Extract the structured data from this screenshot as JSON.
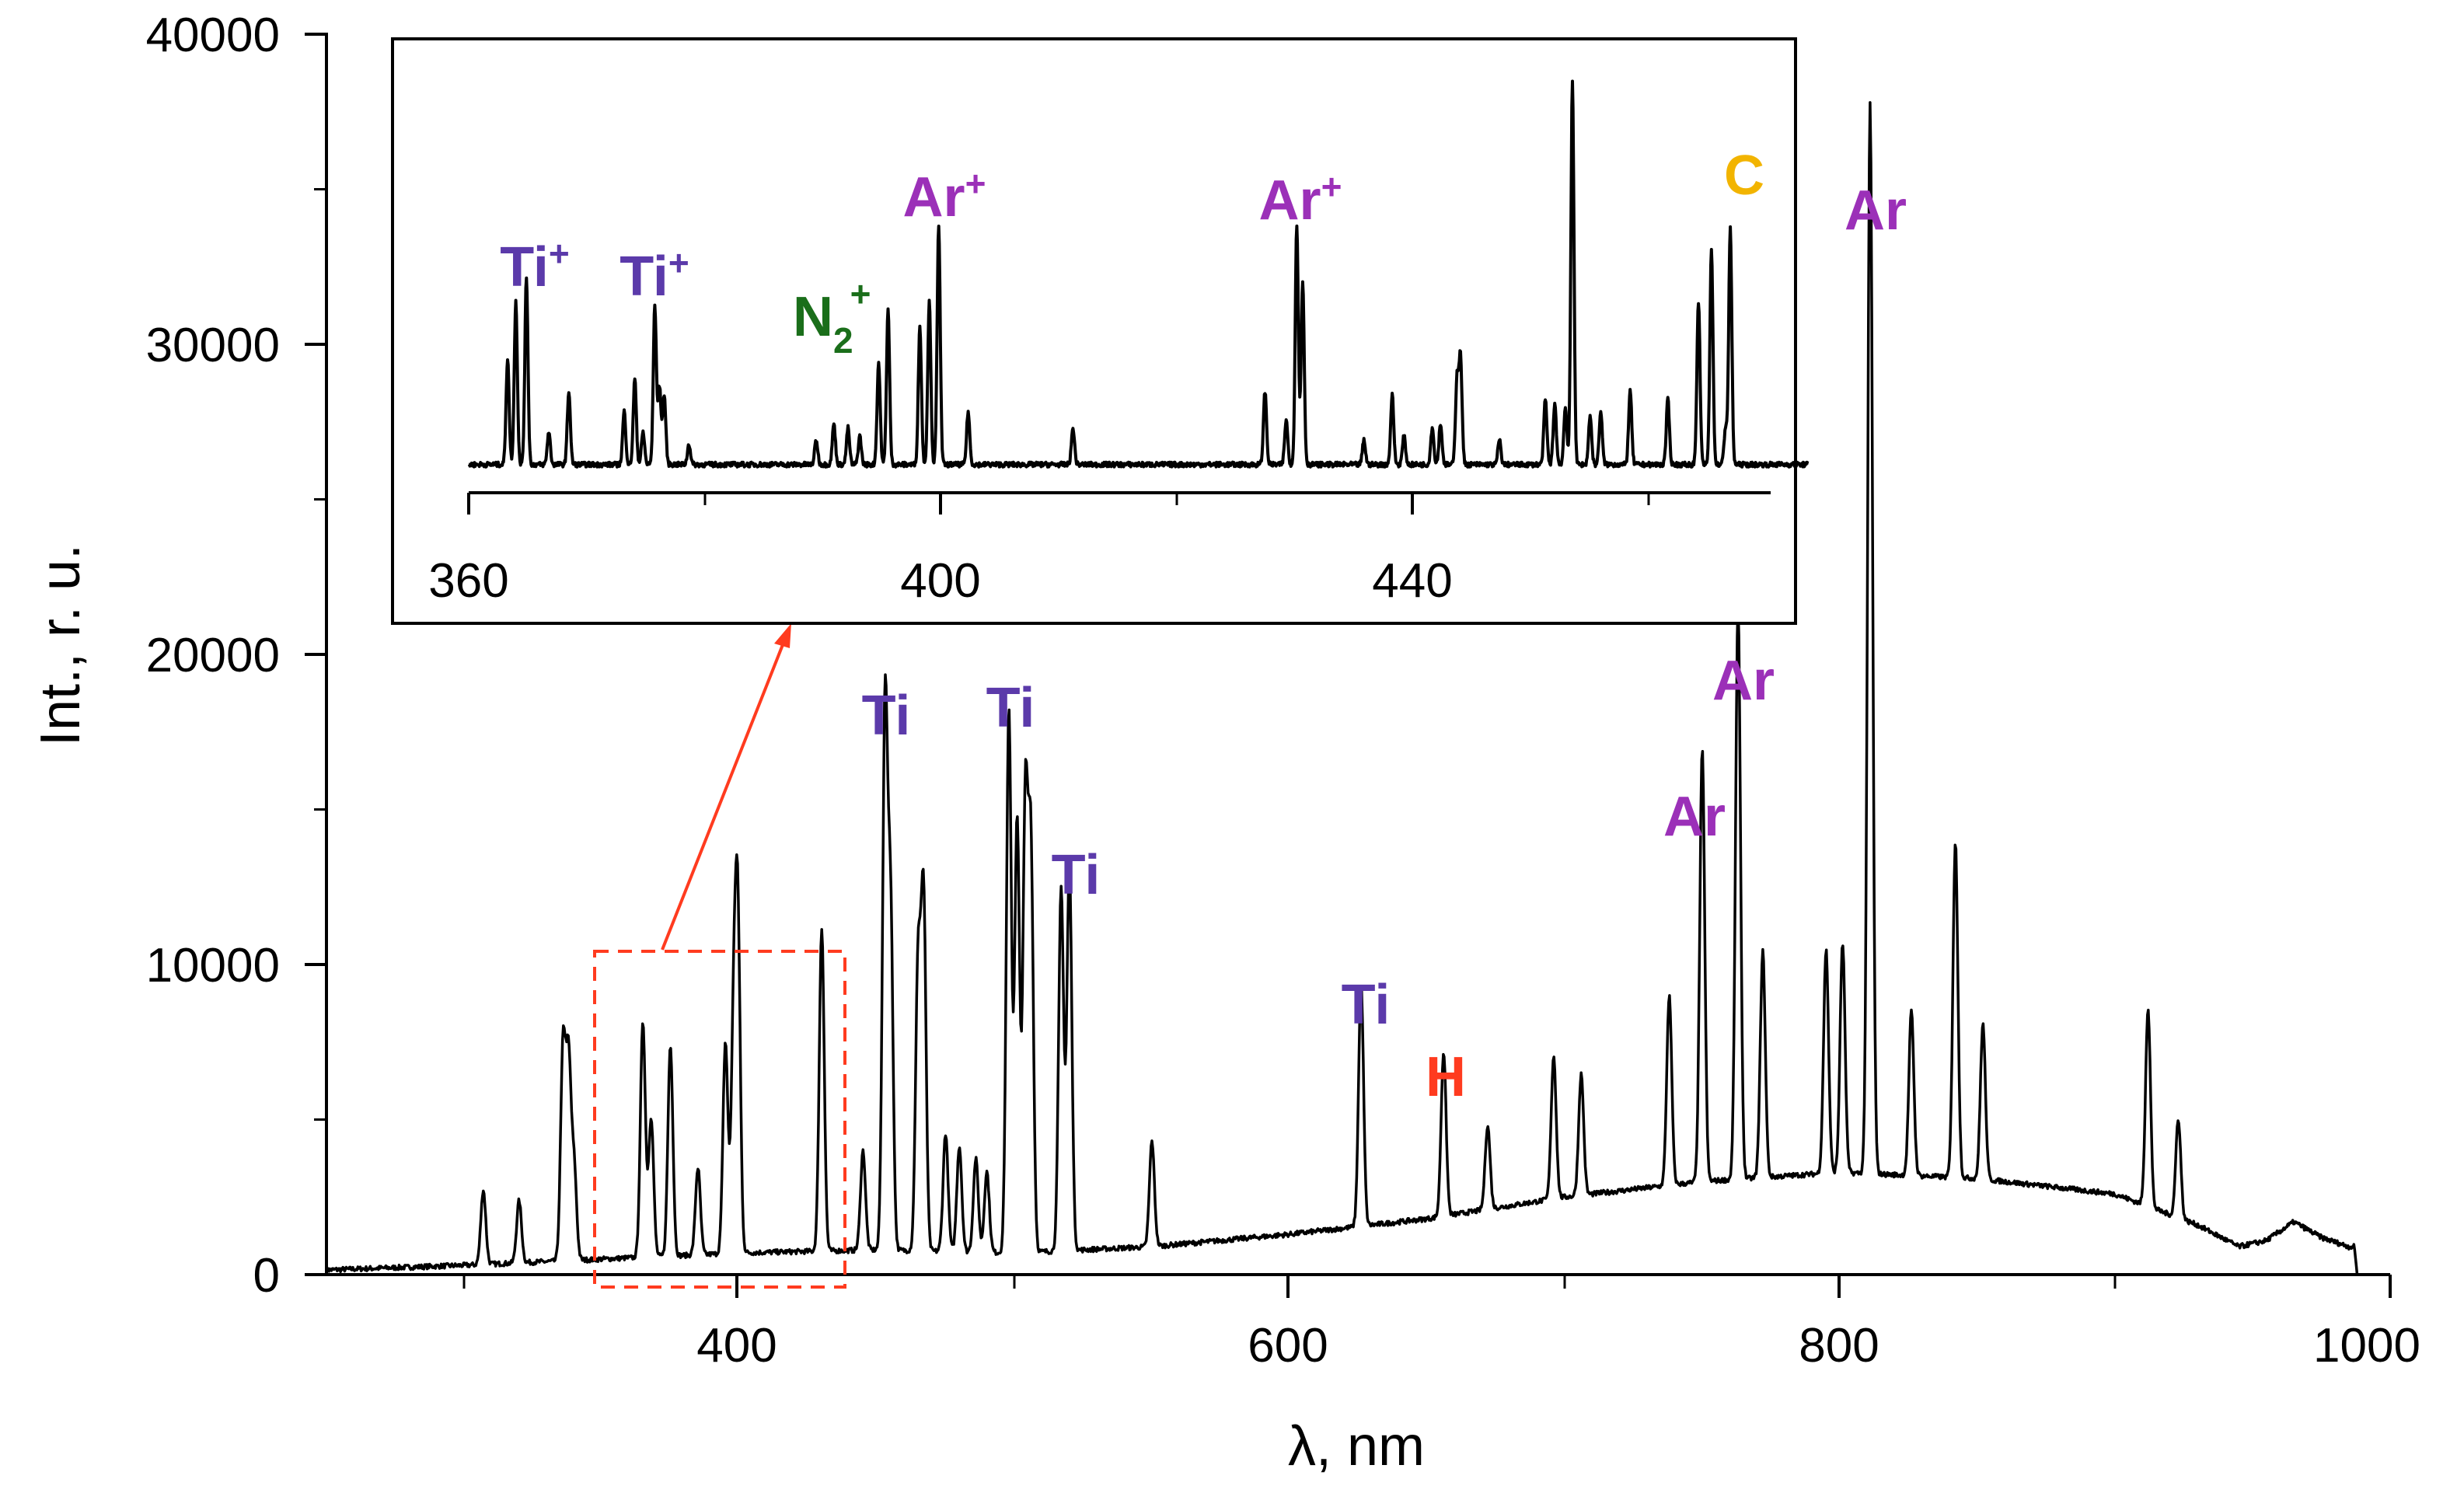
{
  "chart_data": [
    {
      "id": "main",
      "type": "line",
      "title": "",
      "xlabel": "λ, nm",
      "ylabel": "Int., r. u.",
      "xlim": [
        250,
        1000
      ],
      "ylim": [
        0,
        40000
      ],
      "xticks": [
        400,
        600,
        800,
        1000
      ],
      "xtick_labels": [
        "400",
        "600",
        "800",
        "1000"
      ],
      "yticks": [
        0,
        10000,
        20000,
        30000,
        40000
      ],
      "ytick_labels": [
        "0",
        "10000",
        "20000",
        "30000",
        "40000"
      ],
      "baseline": [
        [
          250,
          150
        ],
        [
          300,
          300
        ],
        [
          350,
          500
        ],
        [
          400,
          700
        ],
        [
          450,
          800
        ],
        [
          500,
          700
        ],
        [
          550,
          900
        ],
        [
          600,
          1300
        ],
        [
          650,
          1800
        ],
        [
          700,
          2500
        ],
        [
          750,
          3000
        ],
        [
          800,
          3300
        ],
        [
          850,
          3100
        ],
        [
          900,
          2600
        ],
        [
          930,
          1600
        ],
        [
          945,
          900
        ],
        [
          955,
          1100
        ],
        [
          965,
          1700
        ],
        [
          975,
          1200
        ],
        [
          985,
          900
        ],
        [
          987,
          900
        ],
        [
          988,
          0
        ],
        [
          995,
          0
        ]
      ],
      "peaks": [
        [
          307,
          2400
        ],
        [
          320,
          2000
        ],
        [
          336,
          6900
        ],
        [
          338,
          6300
        ],
        [
          340,
          3000
        ],
        [
          365,
          7600
        ],
        [
          368,
          4500
        ],
        [
          375,
          6800
        ],
        [
          385,
          2800
        ],
        [
          395,
          6800
        ],
        [
          398,
          7200
        ],
        [
          399.5,
          10400
        ],
        [
          430,
          10400
        ],
        [
          445,
          3200
        ],
        [
          453,
          17500
        ],
        [
          455,
          11000
        ],
        [
          465,
          9200
        ],
        [
          467,
          11400
        ],
        [
          475,
          3800
        ],
        [
          480,
          3400
        ],
        [
          486,
          3000
        ],
        [
          490,
          2600
        ],
        [
          498,
          17500
        ],
        [
          501,
          14000
        ],
        [
          504,
          14500
        ],
        [
          506,
          13000
        ],
        [
          517,
          11700
        ],
        [
          520,
          12400
        ],
        [
          550,
          3400
        ],
        [
          626,
          7800
        ],
        [
          656,
          5300
        ],
        [
          672,
          2700
        ],
        [
          696,
          4600
        ],
        [
          706,
          3900
        ],
        [
          738,
          6100
        ],
        [
          750,
          13900
        ],
        [
          763,
          18500
        ],
        [
          772,
          7300
        ],
        [
          795,
          7200
        ],
        [
          801,
          7400
        ],
        [
          811,
          34500
        ],
        [
          826,
          5300
        ],
        [
          842,
          10800
        ],
        [
          852,
          5000
        ],
        [
          912,
          6400
        ],
        [
          923,
          3200
        ]
      ],
      "annotations": [
        {
          "text": "Ti",
          "color": "#5b3aaa"
        },
        {
          "text": "Ti",
          "color": "#5b3aaa"
        },
        {
          "text": "Ti",
          "color": "#5b3aaa"
        },
        {
          "text": "Ti",
          "color": "#5b3aaa"
        },
        {
          "text": "H",
          "color": "#ff3b1f"
        },
        {
          "text": "Ar",
          "color": "#9b30b8"
        },
        {
          "text": "Ar",
          "color": "#9b30b8"
        },
        {
          "text": "Ar",
          "color": "#9b30b8"
        }
      ],
      "zoom_region": {
        "x": [
          350,
          440
        ],
        "y": [
          -400,
          10400
        ],
        "color": "#ff3b1f"
      }
    },
    {
      "id": "inset",
      "type": "line",
      "title": "",
      "xlim": [
        360,
        470
      ],
      "xticks": [
        360,
        400,
        440
      ],
      "xtick_labels": [
        "360",
        "400",
        "440"
      ],
      "minor_xticks": [
        380,
        420,
        460
      ],
      "baseline_level": 0.6,
      "peak_scale_max": 100,
      "peaks": [
        [
          363.3,
          26
        ],
        [
          364,
          40
        ],
        [
          364.9,
          46
        ],
        [
          366.8,
          8
        ],
        [
          368.5,
          18
        ],
        [
          373.2,
          13
        ],
        [
          374.1,
          21
        ],
        [
          374.8,
          8
        ],
        [
          375.8,
          39
        ],
        [
          376.2,
          19
        ],
        [
          376.6,
          17
        ],
        [
          378.7,
          5
        ],
        [
          389.5,
          6
        ],
        [
          391,
          10
        ],
        [
          392.2,
          9
        ],
        [
          393.2,
          7
        ],
        [
          394.8,
          25
        ],
        [
          395.6,
          38
        ],
        [
          398.3,
          34
        ],
        [
          399.1,
          40
        ],
        [
          399.9,
          59
        ],
        [
          402.4,
          13
        ],
        [
          411.3,
          9
        ],
        [
          427.6,
          18
        ],
        [
          429.4,
          11
        ],
        [
          430.3,
          59
        ],
        [
          430.8,
          45
        ],
        [
          436,
          6
        ],
        [
          438.4,
          17
        ],
        [
          439.4,
          7
        ],
        [
          441.8,
          9
        ],
        [
          442.5,
          10
        ],
        [
          443.9,
          21
        ],
        [
          444.2,
          26
        ],
        [
          447.5,
          6
        ],
        [
          451.4,
          16
        ],
        [
          452.2,
          15
        ],
        [
          453.1,
          14
        ],
        [
          453.7,
          94
        ],
        [
          455.2,
          12
        ],
        [
          456.1,
          13
        ],
        [
          458.6,
          18
        ],
        [
          461.8,
          16
        ],
        [
          464.4,
          40
        ],
        [
          465.5,
          53
        ],
        [
          466.7,
          9
        ],
        [
          467.1,
          58
        ]
      ],
      "annotations": [
        {
          "text": "Ti",
          "sup": "+",
          "color": "#5b3aaa"
        },
        {
          "text": "Ti",
          "sup": "+",
          "color": "#5b3aaa"
        },
        {
          "text": "N",
          "sub": "2",
          "sup": "+",
          "color": "#1a6e1a"
        },
        {
          "text": "Ar",
          "sup": "+",
          "color": "#9b30b8"
        },
        {
          "text": "Ar",
          "sup": "+",
          "color": "#9b30b8"
        },
        {
          "text": "C",
          "color": "#f2b400"
        }
      ]
    }
  ]
}
